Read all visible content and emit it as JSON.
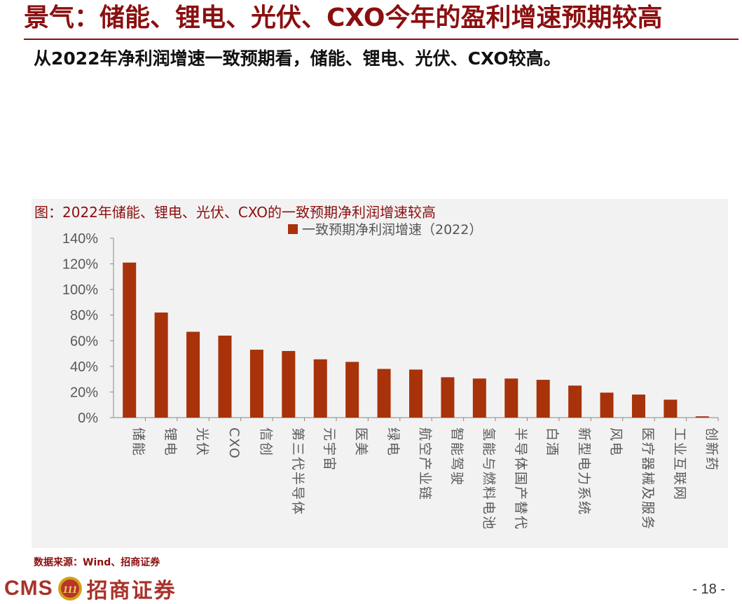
{
  "page": {
    "title": "景气：储能、锂电、光伏、CXO今年的盈利增速预期较高",
    "subtitle": "从2022年净利润增速一致预期看，储能、锂电、光伏、CXO较高。",
    "source": "数据来源：Wind、招商证券",
    "page_number": "- 18 -"
  },
  "footer": {
    "logo_en": "CMS",
    "logo_badge_text": "111",
    "logo_cn": "招商证券"
  },
  "colors": {
    "title": "#8b0f0f",
    "bar": "#a8320a",
    "panel_bg": "#f2f2f2"
  },
  "chart_data": {
    "type": "bar",
    "title": "图：2022年储能、锂电、光伏、CXO的一致预期净利润增速较高",
    "categories": [
      "储能",
      "锂电",
      "光伏",
      "CXO",
      "信创",
      "第三代半导体",
      "元宇宙",
      "医美",
      "绿电",
      "航空产业链",
      "智能驾驶",
      "氢能与燃料电池",
      "半导体国产替代",
      "白酒",
      "新型电力系统",
      "风电",
      "医疗器械及服务",
      "工业互联网",
      "创新药"
    ],
    "series": [
      {
        "name": "一致预期净利润增速（2022）",
        "values": [
          121,
          82,
          67,
          64,
          53,
          52,
          45.5,
          43.5,
          38,
          37.5,
          31.5,
          30.5,
          30.5,
          29.5,
          25,
          19.5,
          18,
          14,
          1
        ]
      }
    ],
    "y_ticks": [
      "0%",
      "20%",
      "40%",
      "60%",
      "80%",
      "100%",
      "120%",
      "140%"
    ],
    "ylim": [
      0,
      140
    ],
    "legend_position": "top",
    "grid": false
  }
}
